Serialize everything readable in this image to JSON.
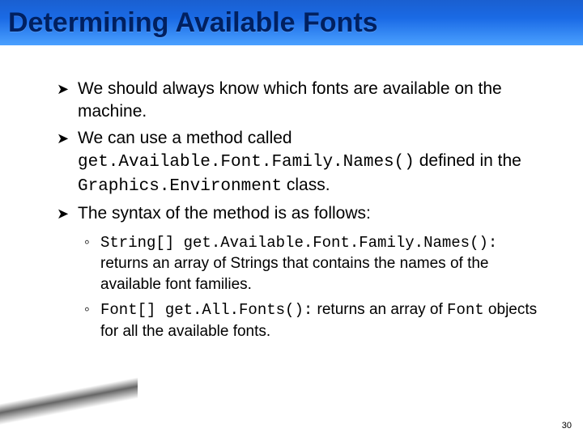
{
  "title": "Determining Available Fonts",
  "bullets": [
    {
      "prefix": "We should always know which fonts are available on the machine."
    },
    {
      "prefix": "We can use a method called ",
      "code1": "get.Available.Font.Family.Names()",
      "mid1": " defined in the ",
      "code2": "Graphics.Environment",
      "suffix": " class."
    },
    {
      "prefix": "The syntax of the method is as follows:"
    }
  ],
  "subs": [
    {
      "code": "String[] get.Available.Font.Family.Names():",
      "rest": " returns an array of Strings that contains the names of the available font families."
    },
    {
      "code": "Font[] get.All.Fonts():",
      "rest1": " returns an array of ",
      "code2": "Font",
      "rest2": " objects for all the available fonts."
    }
  ],
  "marks": {
    "main": "➤",
    "sub": "◦"
  },
  "pageNumber": "30"
}
